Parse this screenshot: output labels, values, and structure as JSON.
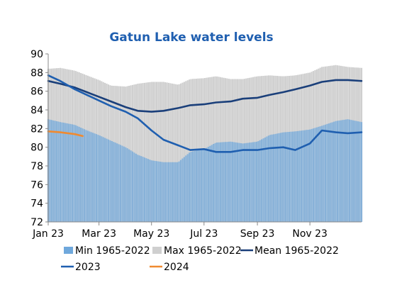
{
  "chart_data": {
    "type": "area",
    "title": "Gatun Lake water levels",
    "xlabel": "",
    "ylabel": "",
    "ylim": [
      72,
      90
    ],
    "yticks": [
      72,
      74,
      76,
      78,
      80,
      82,
      84,
      86,
      88,
      90
    ],
    "xlim": [
      "2023-01-01",
      "2023-12-31"
    ],
    "xticks": [
      {
        "label": "Jan 23",
        "date": "2023-01-01"
      },
      {
        "label": "Mar 23",
        "date": "2023-03-01"
      },
      {
        "label": "May 23",
        "date": "2023-05-01"
      },
      {
        "label": "Jul 23",
        "date": "2023-07-01"
      },
      {
        "label": "Sep 23",
        "date": "2023-09-01"
      },
      {
        "label": "Nov 23",
        "date": "2023-11-01"
      }
    ],
    "grid": false,
    "legend_position": "bottom",
    "x_dates": [
      "2023-01-01",
      "2023-01-15",
      "2023-02-01",
      "2023-02-15",
      "2023-03-01",
      "2023-03-15",
      "2023-04-01",
      "2023-04-15",
      "2023-05-01",
      "2023-05-15",
      "2023-06-01",
      "2023-06-15",
      "2023-07-01",
      "2023-07-15",
      "2023-08-01",
      "2023-08-15",
      "2023-09-01",
      "2023-09-15",
      "2023-10-01",
      "2023-10-15",
      "2023-11-01",
      "2023-11-15",
      "2023-12-01",
      "2023-12-15",
      "2023-12-31"
    ],
    "series": [
      {
        "name": "Min 1965-2022",
        "kind": "band",
        "color": "#6fa8dc",
        "values": [
          83.0,
          82.7,
          82.4,
          81.8,
          81.3,
          80.7,
          80.0,
          79.2,
          78.6,
          78.4,
          78.4,
          79.5,
          79.8,
          80.5,
          80.6,
          80.4,
          80.6,
          81.3,
          81.6,
          81.7,
          81.9,
          82.3,
          82.8,
          83.0,
          82.7
        ]
      },
      {
        "name": "Max 1965-2022",
        "kind": "band",
        "color": "#cfcfcf",
        "values": [
          88.4,
          88.5,
          88.2,
          87.7,
          87.2,
          86.6,
          86.5,
          86.8,
          87.0,
          87.0,
          86.7,
          87.3,
          87.4,
          87.6,
          87.3,
          87.3,
          87.6,
          87.7,
          87.6,
          87.7,
          88.0,
          88.6,
          88.8,
          88.6,
          88.5
        ]
      },
      {
        "name": "Mean 1965-2022",
        "kind": "line",
        "color": "#1a3f7a",
        "values": [
          87.1,
          86.8,
          86.4,
          85.9,
          85.4,
          84.9,
          84.3,
          83.9,
          83.8,
          83.9,
          84.2,
          84.5,
          84.6,
          84.8,
          84.9,
          85.2,
          85.3,
          85.6,
          85.9,
          86.2,
          86.6,
          87.0,
          87.2,
          87.2,
          87.1
        ]
      },
      {
        "name": "2023",
        "kind": "line",
        "color": "#1f5fb0",
        "values": [
          87.7,
          87.1,
          86.2,
          85.6,
          85.0,
          84.4,
          83.8,
          83.1,
          81.8,
          80.8,
          80.2,
          79.7,
          79.8,
          79.5,
          79.5,
          79.7,
          79.7,
          79.9,
          80.0,
          79.7,
          80.4,
          81.8,
          81.6,
          81.5,
          81.6
        ]
      },
      {
        "name": "2024",
        "kind": "line",
        "color": "#f08a30",
        "x_dates": [
          "2023-01-01",
          "2023-01-15",
          "2023-02-01",
          "2023-02-10"
        ],
        "values": [
          81.7,
          81.6,
          81.4,
          81.2
        ]
      }
    ]
  }
}
